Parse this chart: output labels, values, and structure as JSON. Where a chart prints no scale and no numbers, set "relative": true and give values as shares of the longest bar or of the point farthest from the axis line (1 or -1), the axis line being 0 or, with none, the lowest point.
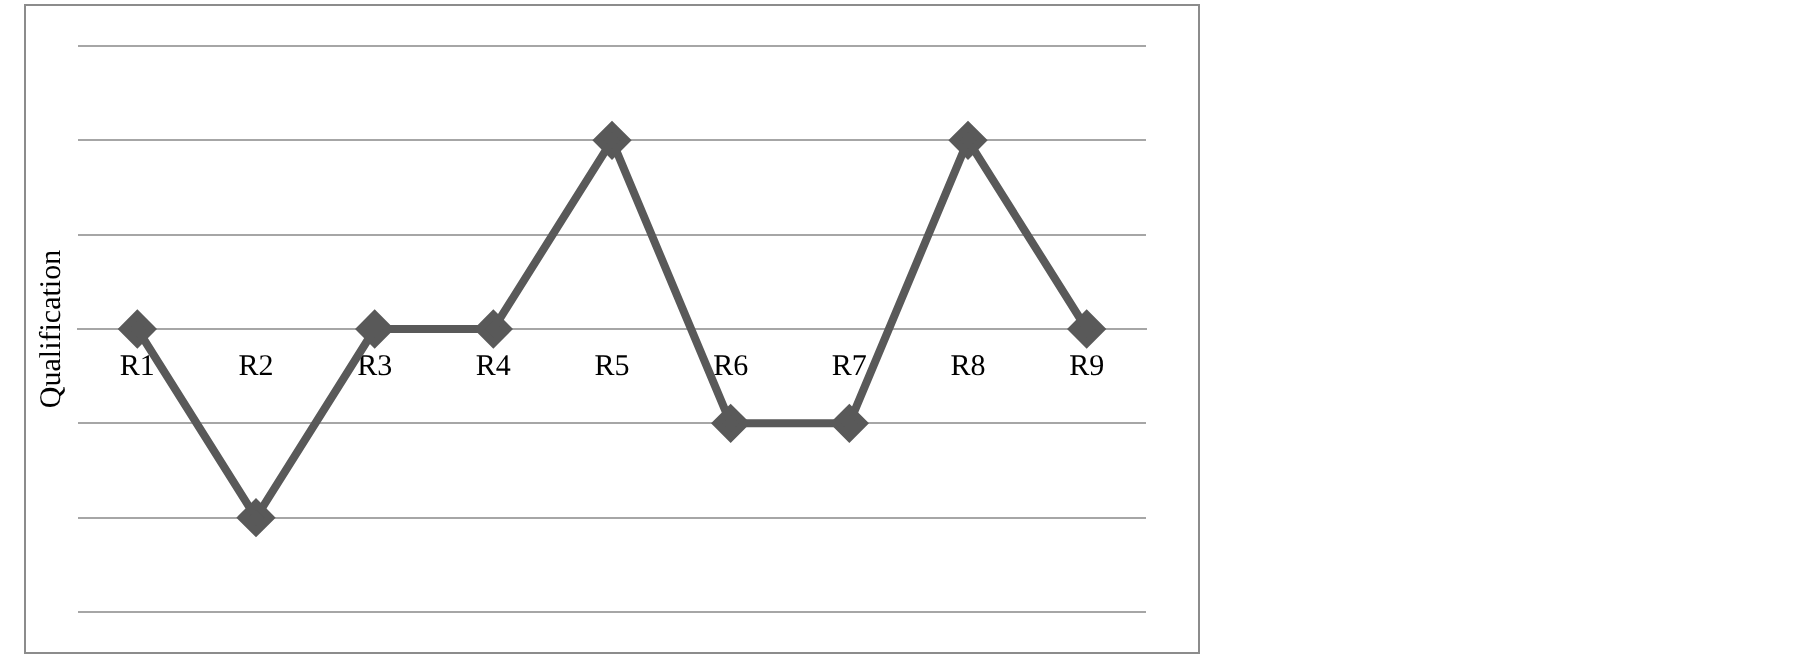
{
  "chart_data": {
    "type": "line",
    "ylabel": "Qualification",
    "categories": [
      "R1",
      "R2",
      "R3",
      "R4",
      "R5",
      "R6",
      "R7",
      "R8",
      "R9"
    ],
    "series": [
      {
        "color": "#595959",
        "values": [
          0,
          -1,
          0,
          0,
          1,
          -0.5,
          -0.5,
          1,
          0
        ]
      }
    ],
    "relative": true,
    "grid": "y",
    "legend": false,
    "marker": "diamond",
    "line_style": "solid"
  }
}
